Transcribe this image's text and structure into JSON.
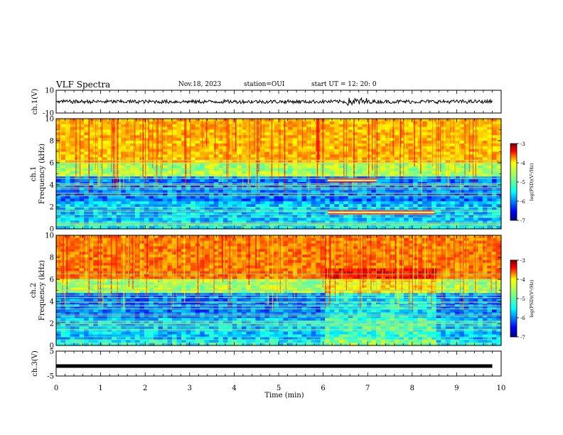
{
  "header": {
    "title": "VLF Spectra",
    "date": "Nov.18, 2023",
    "station": "station=OUI",
    "start_ut": "start  UT =   12: 20: 0"
  },
  "chart_data": [
    {
      "type": "line",
      "panel": "ch1-waveform",
      "ylabel": "ch.1(V)",
      "ylim": [
        -10,
        10
      ],
      "yticks": [
        "10",
        "-10"
      ],
      "xlim": [
        0,
        10
      ],
      "series": [
        {
          "values": [
            0,
            0
          ]
        }
      ],
      "color": "#000000"
    },
    {
      "type": "heatmap",
      "panel": "ch1-spectrogram",
      "ylabel": "ch.1 Frequency (kHz)",
      "ylim": [
        0,
        10
      ],
      "yticks": [
        "0",
        "2",
        "4",
        "6",
        "8",
        "10"
      ],
      "xlim": [
        0,
        10
      ],
      "colorbar": {
        "label": "log(PSD)(V²/Hz)",
        "range": [
          -7,
          -3
        ],
        "ticks": [
          "-3",
          "-4",
          "-5",
          "-6",
          "-7"
        ]
      },
      "features": [
        {
          "t_start": 6.1,
          "t_end": 7.2,
          "freq_khz": 4.4,
          "level": "high"
        },
        {
          "t_start": 6.1,
          "t_end": 7.2,
          "freq_khz": 1.5,
          "level": "high"
        },
        {
          "t_start": 7.2,
          "t_end": 8.5,
          "freq_khz": 1.5,
          "level": "high"
        }
      ]
    },
    {
      "type": "heatmap",
      "panel": "ch2-spectrogram",
      "ylabel": "ch.2 Frequency (kHz)",
      "ylim": [
        0,
        10
      ],
      "yticks": [
        "0",
        "2",
        "4",
        "6",
        "8",
        "10"
      ],
      "xlim": [
        0,
        10
      ],
      "colorbar": {
        "label": "log(PSD)(V²/Hz)",
        "range": [
          -7,
          -3
        ],
        "ticks": [
          "-3",
          "-4",
          "-5",
          "-6",
          "-7"
        ]
      }
    },
    {
      "type": "line",
      "panel": "ch3-waveform",
      "ylabel": "ch.3(V)",
      "ylim": [
        -5,
        5
      ],
      "yticks": [
        "5",
        "-5"
      ],
      "xlim": [
        0,
        10
      ],
      "series": [
        {
          "values": [
            -1,
            -1
          ]
        }
      ],
      "xlabel": "Time (min)",
      "xticks": [
        "0",
        "1",
        "2",
        "3",
        "4",
        "5",
        "6",
        "7",
        "8",
        "9",
        "10"
      ]
    }
  ]
}
